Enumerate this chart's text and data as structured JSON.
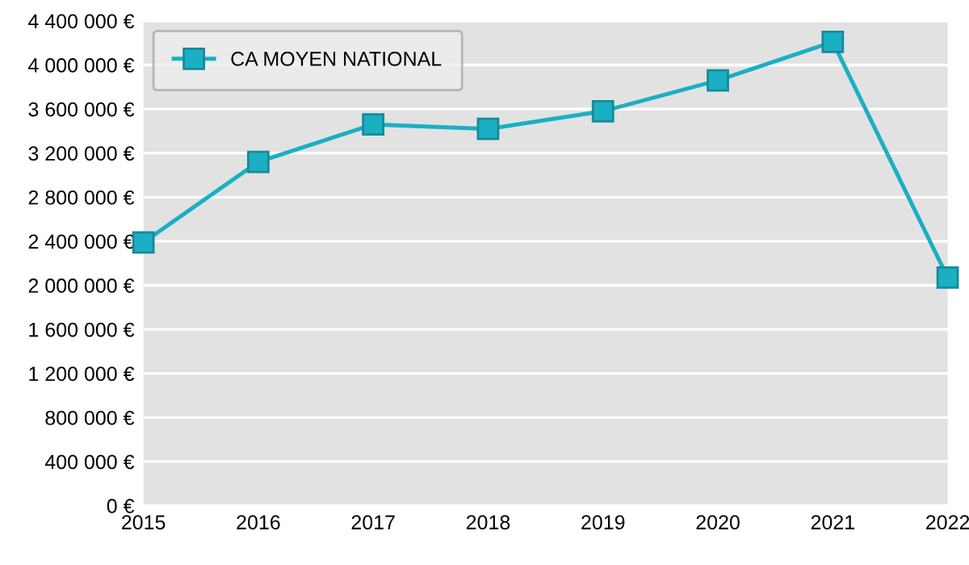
{
  "chart_data": {
    "type": "line",
    "x": [
      2015,
      2016,
      2017,
      2018,
      2019,
      2020,
      2021,
      2022
    ],
    "series": [
      {
        "name": "CA MOYEN NATIONAL",
        "color": "#1aafc2",
        "values": [
          2390000,
          3120000,
          3460000,
          3420000,
          3580000,
          3860000,
          4210000,
          2070000
        ]
      }
    ],
    "xlim": [
      2015,
      2022
    ],
    "xticks": [
      2015,
      2016,
      2017,
      2018,
      2019,
      2020,
      2021,
      2022
    ],
    "ylim": [
      0,
      4400000
    ],
    "yticks": [
      {
        "value": 0,
        "label": "0 €"
      },
      {
        "value": 400000,
        "label": "400 000 €"
      },
      {
        "value": 800000,
        "label": "800 000 €"
      },
      {
        "value": 1200000,
        "label": "1 200 000 €"
      },
      {
        "value": 1600000,
        "label": "1 600 000 €"
      },
      {
        "value": 2000000,
        "label": "2 000 000 €"
      },
      {
        "value": 2400000,
        "label": "2 400 000 €"
      },
      {
        "value": 2800000,
        "label": "2 800 000 €"
      },
      {
        "value": 3200000,
        "label": "3 200 000 €"
      },
      {
        "value": 3600000,
        "label": "3 600 000 €"
      },
      {
        "value": 4000000,
        "label": "4 000 000 €"
      },
      {
        "value": 4400000,
        "label": "4 400 000 €"
      }
    ],
    "grid": "y",
    "legend": "top left",
    "marker": "square",
    "line_style": "solid"
  }
}
